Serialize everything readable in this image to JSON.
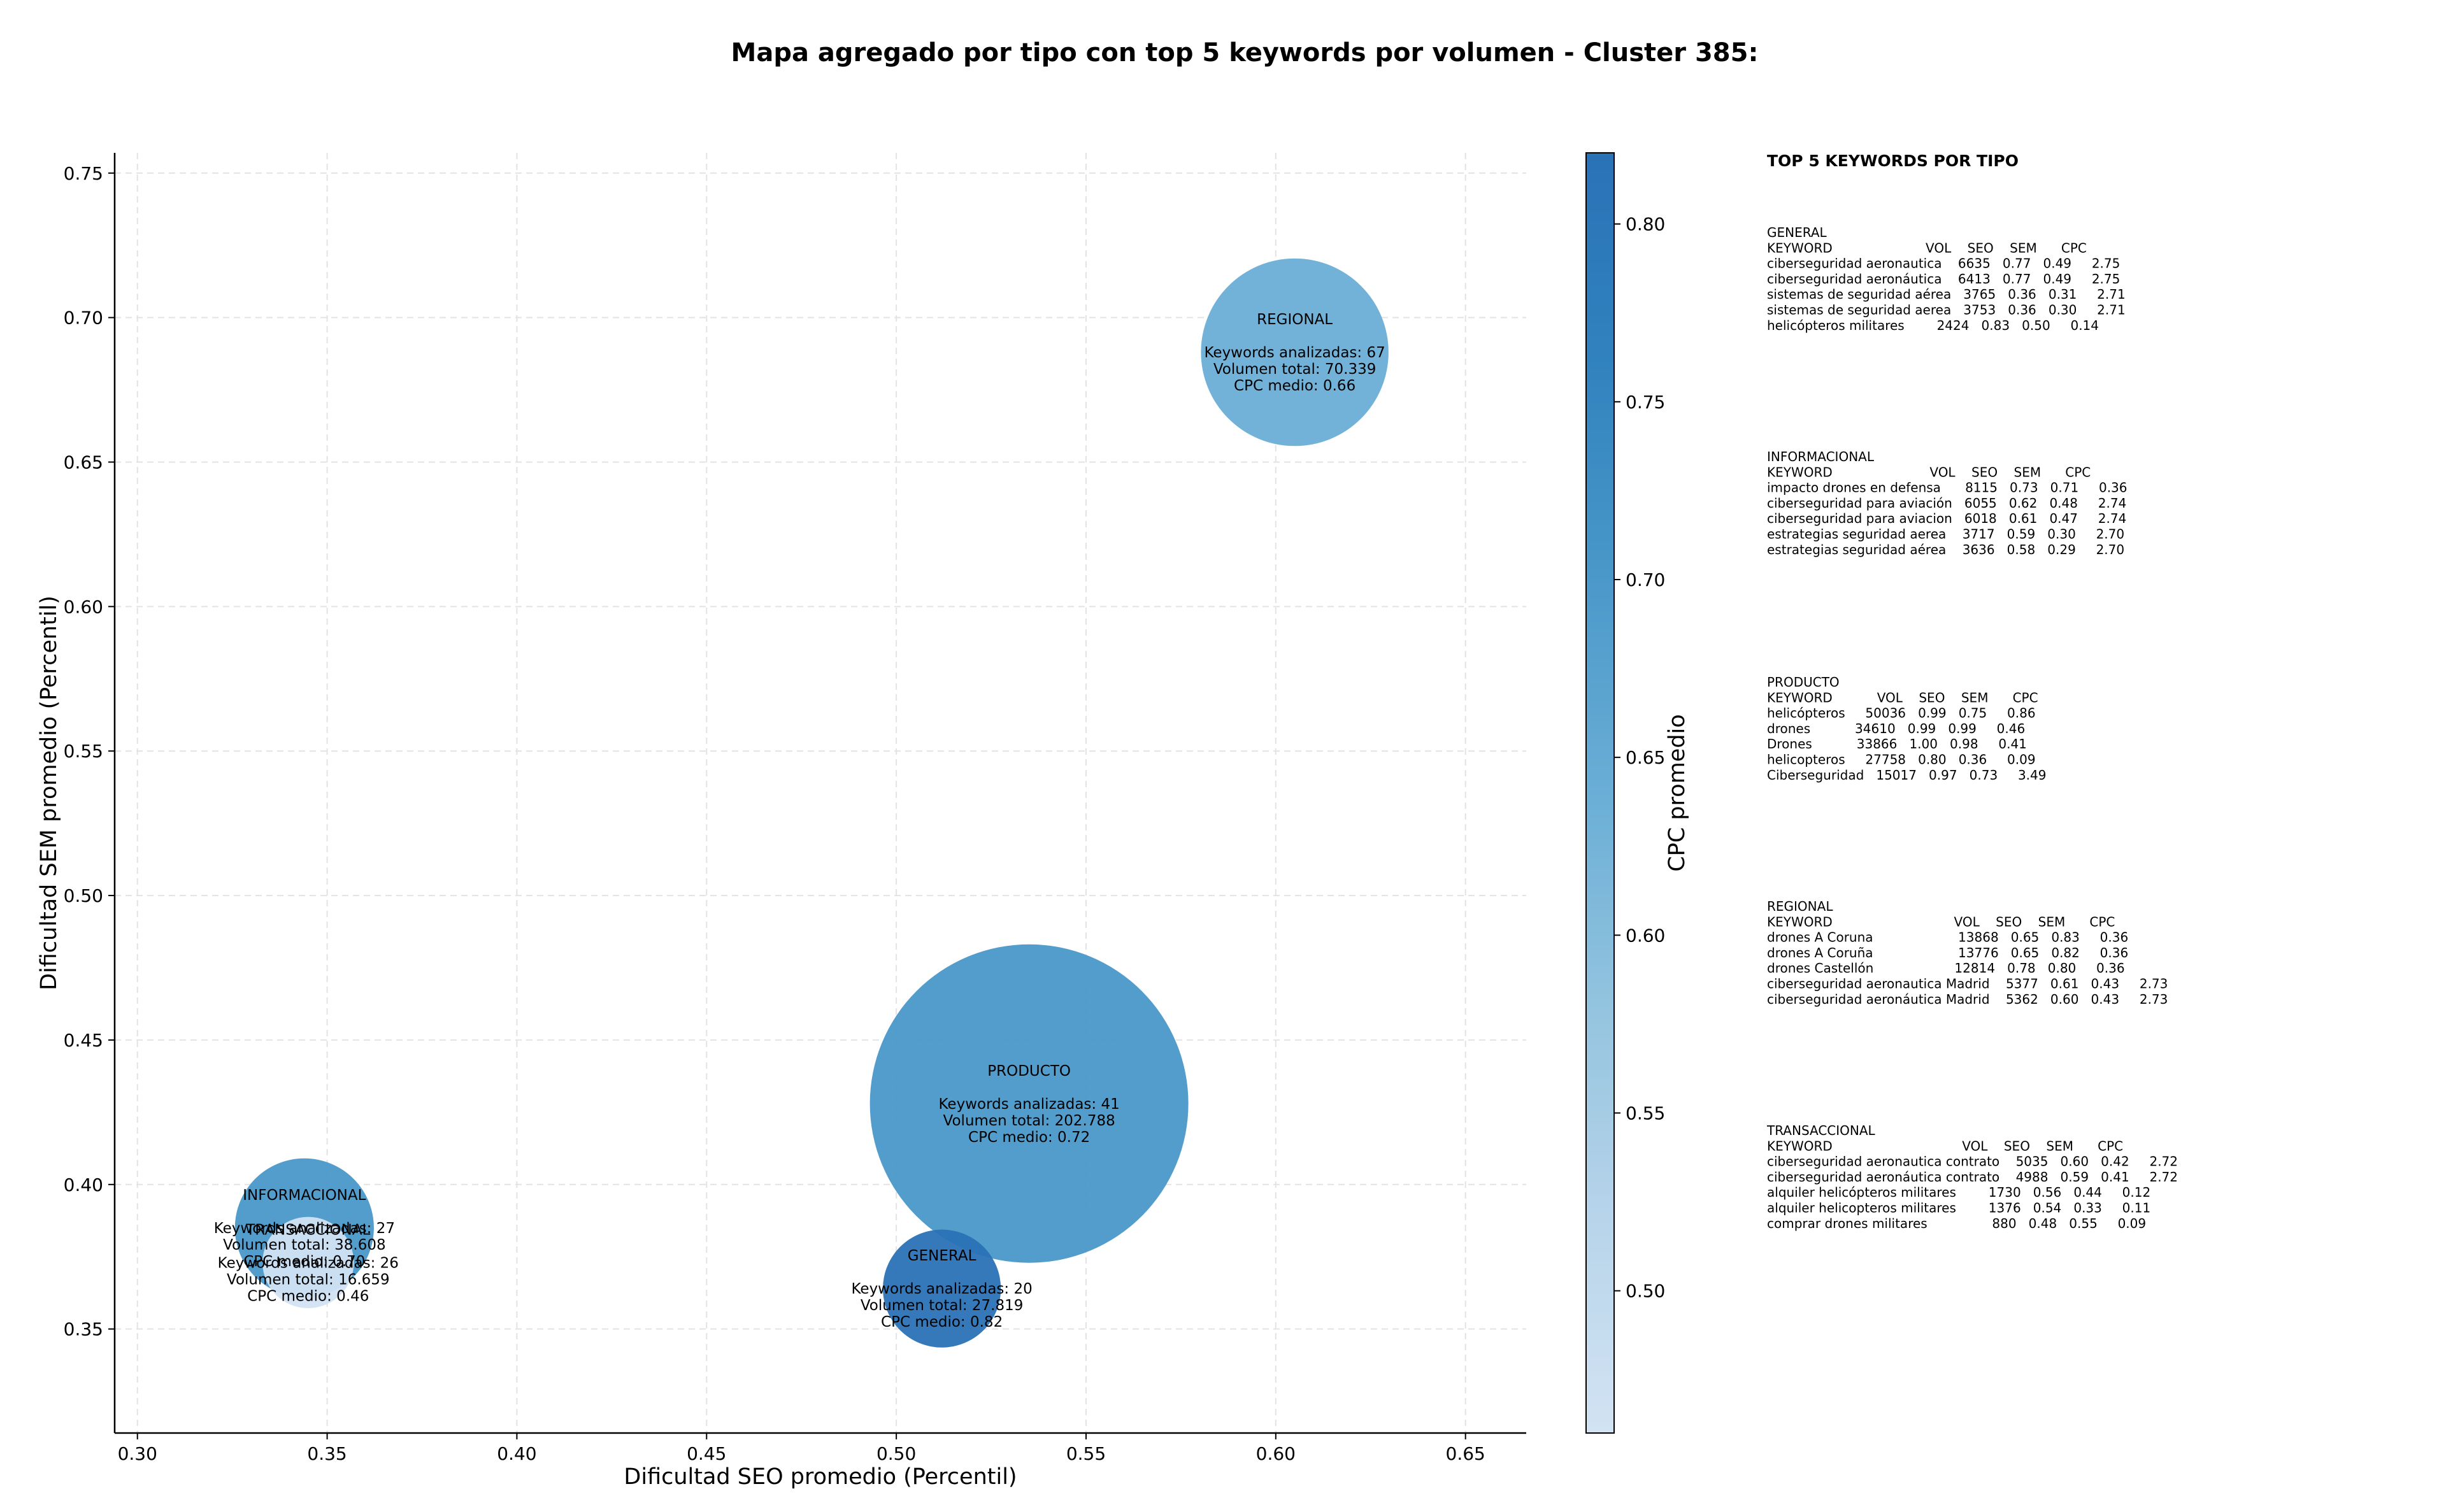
{
  "chart_data": {
    "type": "scatter",
    "title": "Mapa agregado por tipo con top 5 keywords por volumen - Cluster 385:",
    "xlabel": "Dificultad SEO promedio (Percentil)",
    "ylabel": "Dificultad SEM promedio (Percentil)",
    "xlim": [
      0.294,
      0.666
    ],
    "ylim": [
      0.314,
      0.757
    ],
    "xticks": [
      0.3,
      0.35,
      0.4,
      0.45,
      0.5,
      0.55,
      0.6,
      0.65
    ],
    "xtick_labels": [
      "0.30",
      "0.35",
      "0.40",
      "0.45",
      "0.50",
      "0.55",
      "0.60",
      "0.65"
    ],
    "yticks": [
      0.35,
      0.4,
      0.45,
      0.5,
      0.55,
      0.6,
      0.65,
      0.7,
      0.75
    ],
    "ytick_labels": [
      "0.35",
      "0.40",
      "0.45",
      "0.50",
      "0.55",
      "0.60",
      "0.65",
      "0.70",
      "0.75"
    ],
    "grid": true,
    "colorbar": {
      "label": "CPC promedio",
      "range": [
        0.46,
        0.82
      ],
      "ticks": [
        0.5,
        0.55,
        0.6,
        0.65,
        0.7,
        0.75,
        0.8
      ],
      "tick_labels": [
        "0.50",
        "0.55",
        "0.60",
        "0.65",
        "0.70",
        "0.75",
        "0.80"
      ],
      "colors": [
        "#d2e3f3",
        "#b7d4ea",
        "#94c4df",
        "#6aaed6",
        "#4a98c9",
        "#3082be",
        "#2a72b6"
      ]
    },
    "points": [
      {
        "name": "REGIONAL",
        "x": 0.605,
        "y": 0.688,
        "cpc": 0.66,
        "keywords": 67,
        "volume": 70339,
        "color": "#6aaed6",
        "label_lines": [
          "REGIONAL",
          "",
          "Keywords analizadas: 67",
          "Volumen total: 70.339",
          "CPC medio: 0.66"
        ]
      },
      {
        "name": "PRODUCTO",
        "x": 0.535,
        "y": 0.428,
        "cpc": 0.72,
        "keywords": 41,
        "volume": 202788,
        "color": "#4a98c9",
        "label_lines": [
          "PRODUCTO",
          "",
          "Keywords analizadas: 41",
          "Volumen total: 202.788",
          "CPC medio: 0.72"
        ]
      },
      {
        "name": "GENERAL",
        "x": 0.512,
        "y": 0.364,
        "cpc": 0.82,
        "keywords": 20,
        "volume": 27819,
        "color": "#2a72b6",
        "label_lines": [
          "GENERAL",
          "",
          "Keywords analizadas: 20",
          "Volumen total: 27.819",
          "CPC medio: 0.82"
        ]
      },
      {
        "name": "INFORMACIONAL",
        "x": 0.344,
        "y": 0.385,
        "cpc": 0.7,
        "keywords": 27,
        "volume": 38608,
        "color": "#4a98c9",
        "label_lines": [
          "INFORMACIONAL",
          "",
          "Keywords analizadas: 27",
          "Volumen total: 38.608",
          "CPC medio: 0.70"
        ]
      },
      {
        "name": "TRANSACCIONAL",
        "x": 0.345,
        "y": 0.373,
        "cpc": 0.46,
        "keywords": 26,
        "volume": 16659,
        "color": "#d2e3f3",
        "label_lines": [
          "TRANSACCIONAL",
          "",
          "Keywords analizadas: 26",
          "Volumen total: 16.659",
          "CPC medio: 0.46"
        ]
      }
    ]
  },
  "side_panel": {
    "title": "TOP 5 KEYWORDS POR TIPO",
    "tables": [
      {
        "lines": [
          "GENERAL",
          "KEYWORD                       VOL    SEO    SEM      CPC",
          "ciberseguridad aeronautica    6635   0.77   0.49     2.75",
          "ciberseguridad aeronáutica    6413   0.77   0.49     2.75",
          "sistemas de seguridad aérea   3765   0.36   0.31     2.71",
          "sistemas de seguridad aerea   3753   0.36   0.30     2.71",
          "helicópteros militares        2424   0.83   0.50     0.14"
        ]
      },
      {
        "lines": [
          "INFORMACIONAL",
          "KEYWORD                        VOL    SEO    SEM      CPC",
          "impacto drones en defensa      8115   0.73   0.71     0.36",
          "ciberseguridad para aviación   6055   0.62   0.48     2.74",
          "ciberseguridad para aviacion   6018   0.61   0.47     2.74",
          "estrategias seguridad aerea    3717   0.59   0.30     2.70",
          "estrategias seguridad aérea    3636   0.58   0.29     2.70"
        ]
      },
      {
        "lines": [
          "PRODUCTO",
          "KEYWORD           VOL    SEO    SEM      CPC",
          "helicópteros     50036   0.99   0.75     0.86",
          "drones           34610   0.99   0.99     0.46",
          "Drones           33866   1.00   0.98     0.41",
          "helicopteros     27758   0.80   0.36     0.09",
          "Ciberseguridad   15017   0.97   0.73     3.49"
        ]
      },
      {
        "lines": [
          "REGIONAL",
          "KEYWORD                              VOL    SEO    SEM      CPC",
          "drones A Coruna                     13868   0.65   0.83     0.36",
          "drones A Coruña                     13776   0.65   0.82     0.36",
          "drones Castellón                    12814   0.78   0.80     0.36",
          "ciberseguridad aeronautica Madrid    5377   0.61   0.43     2.73",
          "ciberseguridad aeronáutica Madrid    5362   0.60   0.43     2.73"
        ]
      },
      {
        "lines": [
          "TRANSACCIONAL",
          "KEYWORD                                VOL    SEO    SEM      CPC",
          "ciberseguridad aeronautica contrato    5035   0.60   0.42     2.72",
          "ciberseguridad aeronáutica contrato    4988   0.59   0.41     2.72",
          "alquiler helicópteros militares        1730   0.56   0.44     0.12",
          "alquiler helicopteros militares        1376   0.54   0.33     0.11",
          "comprar drones militares                880   0.48   0.55     0.09"
        ]
      }
    ]
  }
}
